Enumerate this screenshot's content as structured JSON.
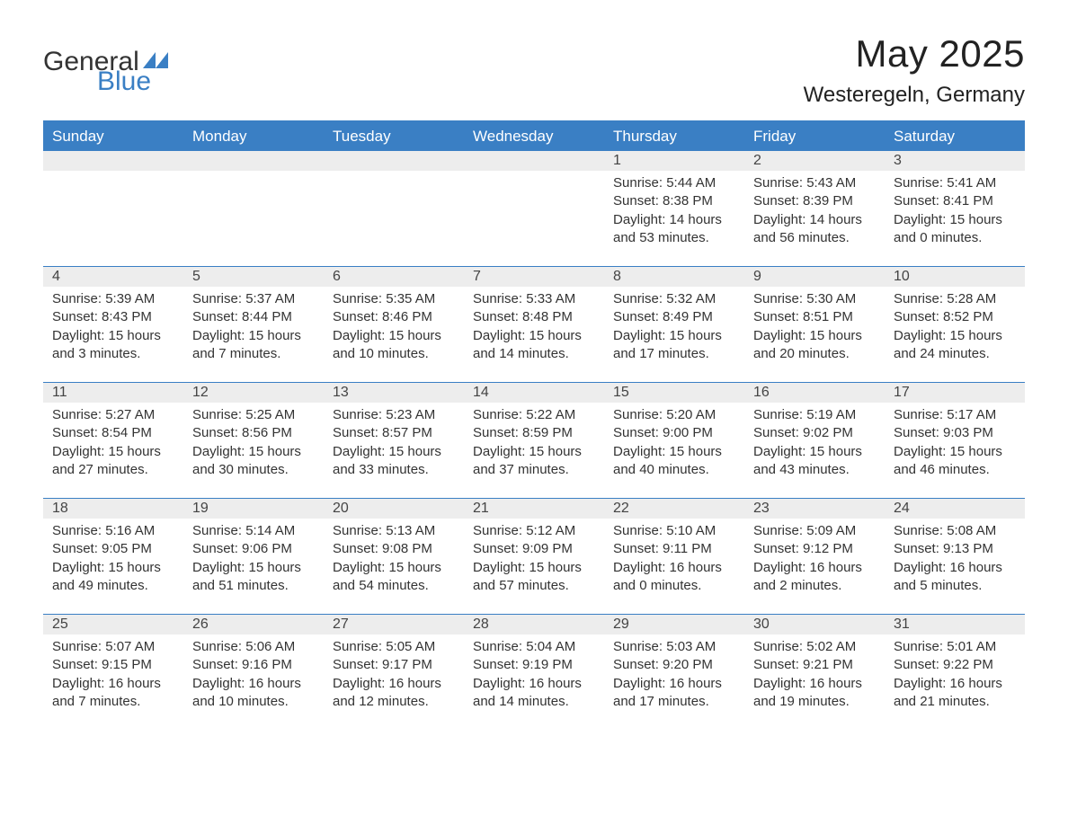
{
  "logo": {
    "text1": "General",
    "text2": "Blue",
    "icon_color": "#3a7fc4"
  },
  "title": "May 2025",
  "location": "Westeregeln, Germany",
  "colors": {
    "header_bg": "#3a7fc4",
    "header_text": "#ffffff",
    "daynum_bg": "#ededed",
    "text": "#333333",
    "rule": "#3a7fc4",
    "page_bg": "#ffffff"
  },
  "typography": {
    "title_fontsize": 42,
    "location_fontsize": 24,
    "dow_fontsize": 17,
    "cell_fontsize": 15,
    "font_family": "Arial"
  },
  "days_of_week": [
    "Sunday",
    "Monday",
    "Tuesday",
    "Wednesday",
    "Thursday",
    "Friday",
    "Saturday"
  ],
  "layout": {
    "columns": 7,
    "rows": 5,
    "first_day_column_index": 4
  },
  "weeks": [
    [
      null,
      null,
      null,
      null,
      {
        "n": "1",
        "sunrise": "5:44 AM",
        "sunset": "8:38 PM",
        "daylight": "14 hours and 53 minutes."
      },
      {
        "n": "2",
        "sunrise": "5:43 AM",
        "sunset": "8:39 PM",
        "daylight": "14 hours and 56 minutes."
      },
      {
        "n": "3",
        "sunrise": "5:41 AM",
        "sunset": "8:41 PM",
        "daylight": "15 hours and 0 minutes."
      }
    ],
    [
      {
        "n": "4",
        "sunrise": "5:39 AM",
        "sunset": "8:43 PM",
        "daylight": "15 hours and 3 minutes."
      },
      {
        "n": "5",
        "sunrise": "5:37 AM",
        "sunset": "8:44 PM",
        "daylight": "15 hours and 7 minutes."
      },
      {
        "n": "6",
        "sunrise": "5:35 AM",
        "sunset": "8:46 PM",
        "daylight": "15 hours and 10 minutes."
      },
      {
        "n": "7",
        "sunrise": "5:33 AM",
        "sunset": "8:48 PM",
        "daylight": "15 hours and 14 minutes."
      },
      {
        "n": "8",
        "sunrise": "5:32 AM",
        "sunset": "8:49 PM",
        "daylight": "15 hours and 17 minutes."
      },
      {
        "n": "9",
        "sunrise": "5:30 AM",
        "sunset": "8:51 PM",
        "daylight": "15 hours and 20 minutes."
      },
      {
        "n": "10",
        "sunrise": "5:28 AM",
        "sunset": "8:52 PM",
        "daylight": "15 hours and 24 minutes."
      }
    ],
    [
      {
        "n": "11",
        "sunrise": "5:27 AM",
        "sunset": "8:54 PM",
        "daylight": "15 hours and 27 minutes."
      },
      {
        "n": "12",
        "sunrise": "5:25 AM",
        "sunset": "8:56 PM",
        "daylight": "15 hours and 30 minutes."
      },
      {
        "n": "13",
        "sunrise": "5:23 AM",
        "sunset": "8:57 PM",
        "daylight": "15 hours and 33 minutes."
      },
      {
        "n": "14",
        "sunrise": "5:22 AM",
        "sunset": "8:59 PM",
        "daylight": "15 hours and 37 minutes."
      },
      {
        "n": "15",
        "sunrise": "5:20 AM",
        "sunset": "9:00 PM",
        "daylight": "15 hours and 40 minutes."
      },
      {
        "n": "16",
        "sunrise": "5:19 AM",
        "sunset": "9:02 PM",
        "daylight": "15 hours and 43 minutes."
      },
      {
        "n": "17",
        "sunrise": "5:17 AM",
        "sunset": "9:03 PM",
        "daylight": "15 hours and 46 minutes."
      }
    ],
    [
      {
        "n": "18",
        "sunrise": "5:16 AM",
        "sunset": "9:05 PM",
        "daylight": "15 hours and 49 minutes."
      },
      {
        "n": "19",
        "sunrise": "5:14 AM",
        "sunset": "9:06 PM",
        "daylight": "15 hours and 51 minutes."
      },
      {
        "n": "20",
        "sunrise": "5:13 AM",
        "sunset": "9:08 PM",
        "daylight": "15 hours and 54 minutes."
      },
      {
        "n": "21",
        "sunrise": "5:12 AM",
        "sunset": "9:09 PM",
        "daylight": "15 hours and 57 minutes."
      },
      {
        "n": "22",
        "sunrise": "5:10 AM",
        "sunset": "9:11 PM",
        "daylight": "16 hours and 0 minutes."
      },
      {
        "n": "23",
        "sunrise": "5:09 AM",
        "sunset": "9:12 PM",
        "daylight": "16 hours and 2 minutes."
      },
      {
        "n": "24",
        "sunrise": "5:08 AM",
        "sunset": "9:13 PM",
        "daylight": "16 hours and 5 minutes."
      }
    ],
    [
      {
        "n": "25",
        "sunrise": "5:07 AM",
        "sunset": "9:15 PM",
        "daylight": "16 hours and 7 minutes."
      },
      {
        "n": "26",
        "sunrise": "5:06 AM",
        "sunset": "9:16 PM",
        "daylight": "16 hours and 10 minutes."
      },
      {
        "n": "27",
        "sunrise": "5:05 AM",
        "sunset": "9:17 PM",
        "daylight": "16 hours and 12 minutes."
      },
      {
        "n": "28",
        "sunrise": "5:04 AM",
        "sunset": "9:19 PM",
        "daylight": "16 hours and 14 minutes."
      },
      {
        "n": "29",
        "sunrise": "5:03 AM",
        "sunset": "9:20 PM",
        "daylight": "16 hours and 17 minutes."
      },
      {
        "n": "30",
        "sunrise": "5:02 AM",
        "sunset": "9:21 PM",
        "daylight": "16 hours and 19 minutes."
      },
      {
        "n": "31",
        "sunrise": "5:01 AM",
        "sunset": "9:22 PM",
        "daylight": "16 hours and 21 minutes."
      }
    ]
  ],
  "labels": {
    "sunrise": "Sunrise:",
    "sunset": "Sunset:",
    "daylight": "Daylight:"
  }
}
